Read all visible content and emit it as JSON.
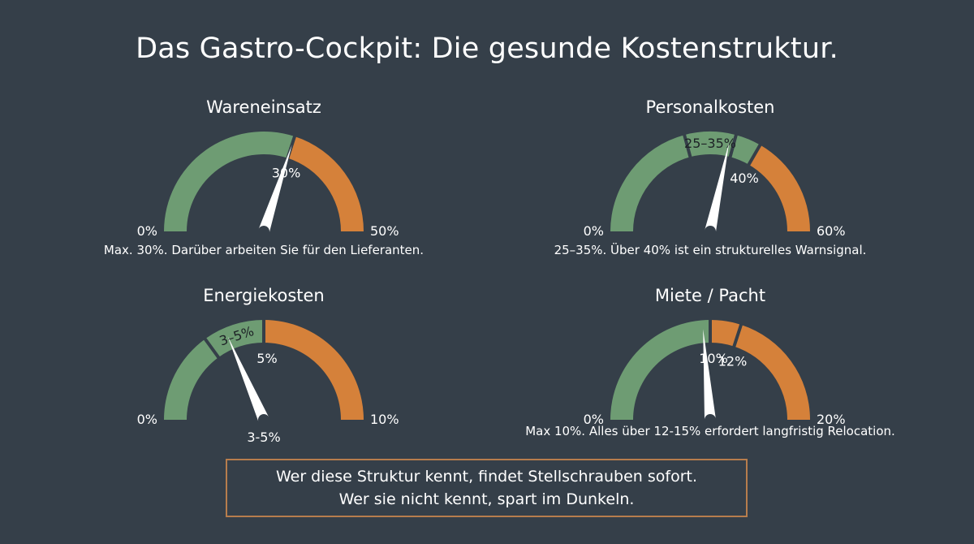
{
  "title": "Das Gastro-Cockpit: Die gesunde Kostenstruktur.",
  "colors": {
    "green": "#6e9c73",
    "orange": "#d5813a",
    "background": "#353f49",
    "needle": "#ffffff"
  },
  "chart_data": [
    {
      "type": "gauge",
      "title": "Wareneinsatz",
      "min": 0,
      "max": 50,
      "min_label": "0%",
      "max_label": "50%",
      "zones": [
        {
          "from": 0,
          "to": 30,
          "color": "green",
          "label": ""
        },
        {
          "from": 30,
          "to": 50,
          "color": "orange",
          "label": ""
        }
      ],
      "markers": [
        {
          "value": 30,
          "label": "30%"
        }
      ],
      "needle": 30,
      "needle_label": "",
      "caption": "Max. 30%. Darüber arbeiten Sie für den Lieferanten."
    },
    {
      "type": "gauge",
      "title": "Personalkosten",
      "min": 0,
      "max": 60,
      "min_label": "0%",
      "max_label": "60%",
      "zones": [
        {
          "from": 0,
          "to": 25,
          "color": "green",
          "label": ""
        },
        {
          "from": 25,
          "to": 35,
          "color": "green",
          "label": "25–35%"
        },
        {
          "from": 35,
          "to": 40,
          "color": "green",
          "label": ""
        },
        {
          "from": 40,
          "to": 60,
          "color": "orange",
          "label": ""
        }
      ],
      "markers": [
        {
          "value": 40,
          "label": "40%"
        }
      ],
      "needle": 34,
      "needle_label": "",
      "caption": "25–35%. Über 40% ist ein strukturelles Warnsignal."
    },
    {
      "type": "gauge",
      "title": "Energiekosten",
      "min": 0,
      "max": 10,
      "min_label": "0%",
      "max_label": "10%",
      "zones": [
        {
          "from": 0,
          "to": 3,
          "color": "green",
          "label": ""
        },
        {
          "from": 3,
          "to": 5,
          "color": "green",
          "label": "3–5%"
        },
        {
          "from": 5,
          "to": 10,
          "color": "orange",
          "label": ""
        }
      ],
      "markers": [
        {
          "value": 5,
          "label": "5%"
        }
      ],
      "needle": 3.7,
      "needle_label": "3-5%",
      "caption": ""
    },
    {
      "type": "gauge",
      "title": "Miete / Pacht",
      "min": 0,
      "max": 20,
      "min_label": "0%",
      "max_label": "20%",
      "zones": [
        {
          "from": 0,
          "to": 10,
          "color": "green",
          "label": ""
        },
        {
          "from": 10,
          "to": 12,
          "color": "orange",
          "label": ""
        },
        {
          "from": 12,
          "to": 20,
          "color": "orange",
          "label": ""
        }
      ],
      "markers": [
        {
          "value": 10,
          "label": "10%"
        },
        {
          "value": 12,
          "label": "12%"
        }
      ],
      "needle": 9.5,
      "needle_label": "",
      "caption": "Max 10%. Alles über 12-15% erfordert langfristig Relocation."
    }
  ],
  "callout": {
    "line1": "Wer diese Struktur kennt, findet Stellschrauben sofort.",
    "line2": "Wer sie nicht kennt, spart im Dunkeln."
  }
}
